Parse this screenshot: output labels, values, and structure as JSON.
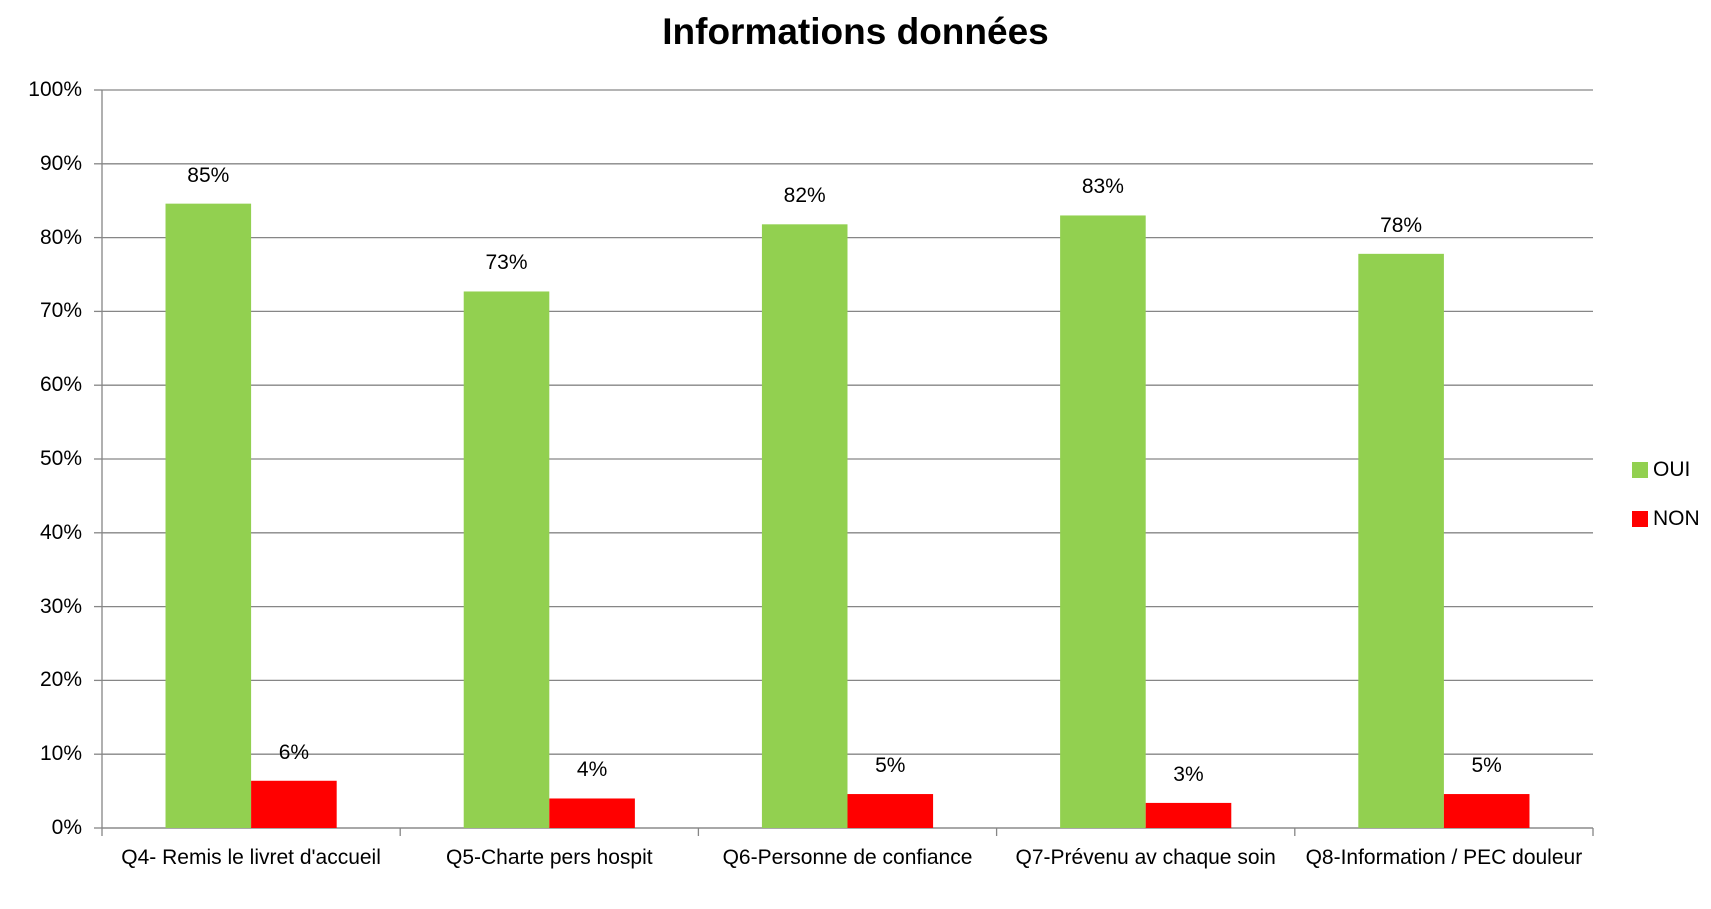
{
  "chart_data": {
    "type": "bar",
    "title": "Informations données",
    "categories": [
      "Q4- Remis le livret d'accueil",
      "Q5-Charte pers hospit",
      "Q6-Personne de confiance",
      "Q7-Prévenu av chaque soin",
      "Q8-Information / PEC douleur"
    ],
    "series": [
      {
        "name": "OUI",
        "color": "#92d050",
        "values": [
          84.6,
          72.7,
          81.8,
          83.0,
          77.8
        ],
        "value_labels": [
          "85%",
          "73%",
          "82%",
          "83%",
          "78%"
        ]
      },
      {
        "name": "NON",
        "color": "#ff0000",
        "values": [
          6.4,
          4.0,
          4.6,
          3.4,
          4.6
        ],
        "value_labels": [
          "6%",
          "4%",
          "5%",
          "3%",
          "5%"
        ]
      }
    ],
    "ylim": [
      0,
      100
    ],
    "yticks": [
      {
        "value": 0,
        "label": "0%"
      },
      {
        "value": 10,
        "label": "10%"
      },
      {
        "value": 20,
        "label": "20%"
      },
      {
        "value": 30,
        "label": "30%"
      },
      {
        "value": 40,
        "label": "40%"
      },
      {
        "value": 50,
        "label": "50%"
      },
      {
        "value": 60,
        "label": "60%"
      },
      {
        "value": 70,
        "label": "70%"
      },
      {
        "value": 80,
        "label": "80%"
      },
      {
        "value": 90,
        "label": "90%"
      },
      {
        "value": 100,
        "label": "100%"
      }
    ],
    "grid": true,
    "legend": "right"
  }
}
